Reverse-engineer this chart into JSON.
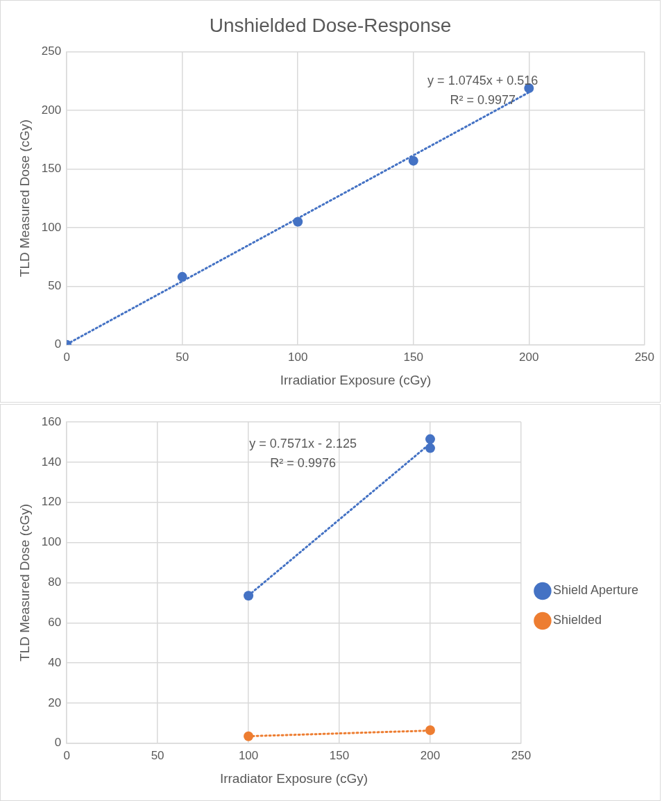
{
  "chart_data": [
    {
      "type": "scatter",
      "title": "Unshielded Dose-Response",
      "xlabel": "Irradiatior Exposure (cGy)",
      "ylabel": "TLD Measured Dose (cGy)",
      "series": [
        {
          "color": "#4472c4",
          "x": [
            0,
            50,
            100,
            150,
            200
          ],
          "values": [
            0,
            58,
            105,
            157,
            219
          ]
        },
        {
          "type": "line",
          "color": "#4472c4",
          "line_style": "dotted",
          "marker": "none",
          "x": [
            0,
            200
          ],
          "values": [
            0.5,
            215.4
          ]
        }
      ],
      "xlim": [
        0,
        250
      ],
      "xticks": [
        0,
        50,
        100,
        150,
        200,
        250
      ],
      "ylim": [
        0,
        250
      ],
      "yticks": [
        0,
        50,
        100,
        150,
        200,
        250
      ],
      "grid": true,
      "marker": "circle",
      "legend": false,
      "annotations": [
        "y = 1.0745x + 0.516",
        "R² = 0.9977"
      ]
    },
    {
      "type": "scatter",
      "xlabel": "Irradiator Exposure (cGy)",
      "ylabel": "TLD Measured Dose (cGy)",
      "series": [
        {
          "name": "Shield Aperture",
          "color": "#4472c4",
          "x": [
            100,
            200,
            200
          ],
          "values": [
            73.5,
            147,
            151.5
          ]
        },
        {
          "name": "Shielded",
          "color": "#ed7d31",
          "x": [
            100,
            200
          ],
          "values": [
            3.5,
            6.5
          ]
        },
        {
          "type": "line",
          "color": "#4472c4",
          "line_style": "dotted",
          "marker": "none",
          "x": [
            100,
            200
          ],
          "values": [
            73.6,
            149.3
          ]
        },
        {
          "type": "line",
          "color": "#ed7d31",
          "line_style": "dotted",
          "marker": "none",
          "x": [
            100,
            200
          ],
          "values": [
            3.5,
            6.3
          ]
        }
      ],
      "xlim": [
        0,
        250
      ],
      "xticks": [
        0,
        50,
        100,
        150,
        200,
        250
      ],
      "ylim": [
        0,
        160
      ],
      "yticks": [
        0,
        20,
        40,
        60,
        80,
        100,
        120,
        140,
        160
      ],
      "grid": true,
      "marker": "circle",
      "legend": "right",
      "annotations": [
        "y = 0.7571x - 2.125",
        "R² = 0.9976"
      ]
    }
  ]
}
